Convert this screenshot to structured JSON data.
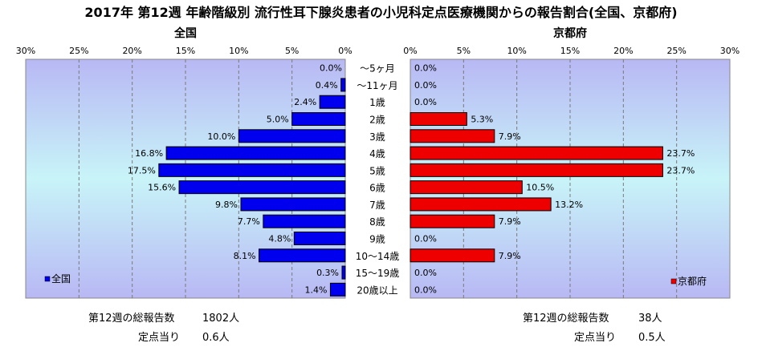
{
  "title": "2017年 第12週 年齢階級別 流行性耳下腺炎患者の小児科定点医療機関からの報告割合(全国、京都府)",
  "colors": {
    "national": "#0000ee",
    "kyoto": "#ee0000",
    "plot_top": "#b8b8f4",
    "plot_mid": "#c8f4f8",
    "plot_bottom": "#b8b8f4"
  },
  "chart_data": [
    {
      "type": "bar",
      "orientation": "horizontal",
      "direction": "right-to-left",
      "panel_title": "全国",
      "legend": "全国",
      "legend_position": "bottom-left",
      "xlim": [
        0,
        30
      ],
      "ticks": [
        "30%",
        "25%",
        "20%",
        "15%",
        "10%",
        "5%",
        "0%"
      ],
      "grid": true,
      "categories": [
        "～5ヶ月",
        "～11ヶ月",
        "1歳",
        "2歳",
        "3歳",
        "4歳",
        "5歳",
        "6歳",
        "7歳",
        "8歳",
        "9歳",
        "10～14歳",
        "15～19歳",
        "20歳以上"
      ],
      "values": [
        0.0,
        0.4,
        2.4,
        5.0,
        10.0,
        16.8,
        17.5,
        15.6,
        9.8,
        7.7,
        4.8,
        8.1,
        0.3,
        1.4
      ],
      "labels": [
        "0.0%",
        "0.4%",
        "2.4%",
        "5.0%",
        "10.0%",
        "16.8%",
        "17.5%",
        "15.6%",
        "9.8%",
        "7.7%",
        "4.8%",
        "8.1%",
        "0.3%",
        "1.4%"
      ]
    },
    {
      "type": "bar",
      "orientation": "horizontal",
      "direction": "left-to-right",
      "panel_title": "京都府",
      "legend": "京都府",
      "legend_position": "bottom-right",
      "xlim": [
        0,
        30
      ],
      "ticks": [
        "0%",
        "5%",
        "10%",
        "15%",
        "20%",
        "25%",
        "30%"
      ],
      "grid": true,
      "categories": [
        "～5ヶ月",
        "～11ヶ月",
        "1歳",
        "2歳",
        "3歳",
        "4歳",
        "5歳",
        "6歳",
        "7歳",
        "8歳",
        "9歳",
        "10～14歳",
        "15～19歳",
        "20歳以上"
      ],
      "values": [
        0.0,
        0.0,
        0.0,
        5.3,
        7.9,
        23.7,
        23.7,
        10.5,
        13.2,
        7.9,
        0.0,
        7.9,
        0.0,
        0.0
      ],
      "labels": [
        "0.0%",
        "0.0%",
        "0.0%",
        "5.3%",
        "7.9%",
        "23.7%",
        "23.7%",
        "10.5%",
        "13.2%",
        "7.9%",
        "0.0%",
        "7.9%",
        "0.0%",
        "0.0%"
      ]
    }
  ],
  "footer": {
    "national": {
      "total_label": "第12週の総報告数",
      "total_value": "1802人",
      "per_site_label": "定点当り",
      "per_site_value": "0.6人"
    },
    "kyoto": {
      "total_label": "第12週の総報告数",
      "total_value": "38人",
      "per_site_label": "定点当り",
      "per_site_value": "0.5人"
    }
  }
}
